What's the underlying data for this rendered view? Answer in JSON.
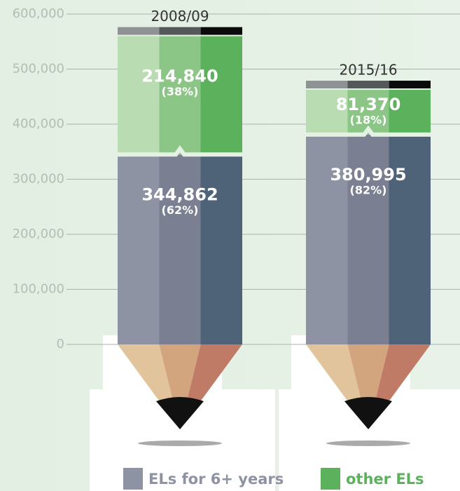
{
  "chart_data": {
    "type": "bar",
    "stacked": true,
    "categories": [
      "2008/09",
      "2015/16"
    ],
    "series": [
      {
        "name": "ELs for 6+ years",
        "color": "#8e93a3",
        "stripe_colors": [
          "#8e93a3",
          "#7a7f92",
          "#4e6278"
        ],
        "values": [
          344862,
          380995
        ],
        "value_labels": [
          "344,862",
          "380,995"
        ],
        "percents": [
          62,
          82
        ],
        "percent_labels": [
          "(62%)",
          "(82%)"
        ]
      },
      {
        "name": "other ELs",
        "color": "#5cb25c",
        "stripe_colors": [
          "#b9dcb2",
          "#8cc687",
          "#5cb25c"
        ],
        "values": [
          214840,
          81370
        ],
        "value_labels": [
          "214,840",
          "81,370"
        ],
        "percents": [
          38,
          18
        ],
        "percent_labels": [
          "(38%)",
          "(18%)"
        ]
      }
    ],
    "ylim": [
      0,
      600000
    ],
    "yticks": [
      0,
      {
        "value": 100000,
        "label": "100,000"
      },
      {
        "value": 200000,
        "label": "200,000"
      },
      {
        "value": 300000,
        "label": "300,000"
      },
      {
        "value": 400000,
        "label": "400,000"
      },
      {
        "value": 500000,
        "label": "500,000"
      },
      {
        "value": 600000,
        "label": "600,000"
      }
    ],
    "grid": true
  }
}
